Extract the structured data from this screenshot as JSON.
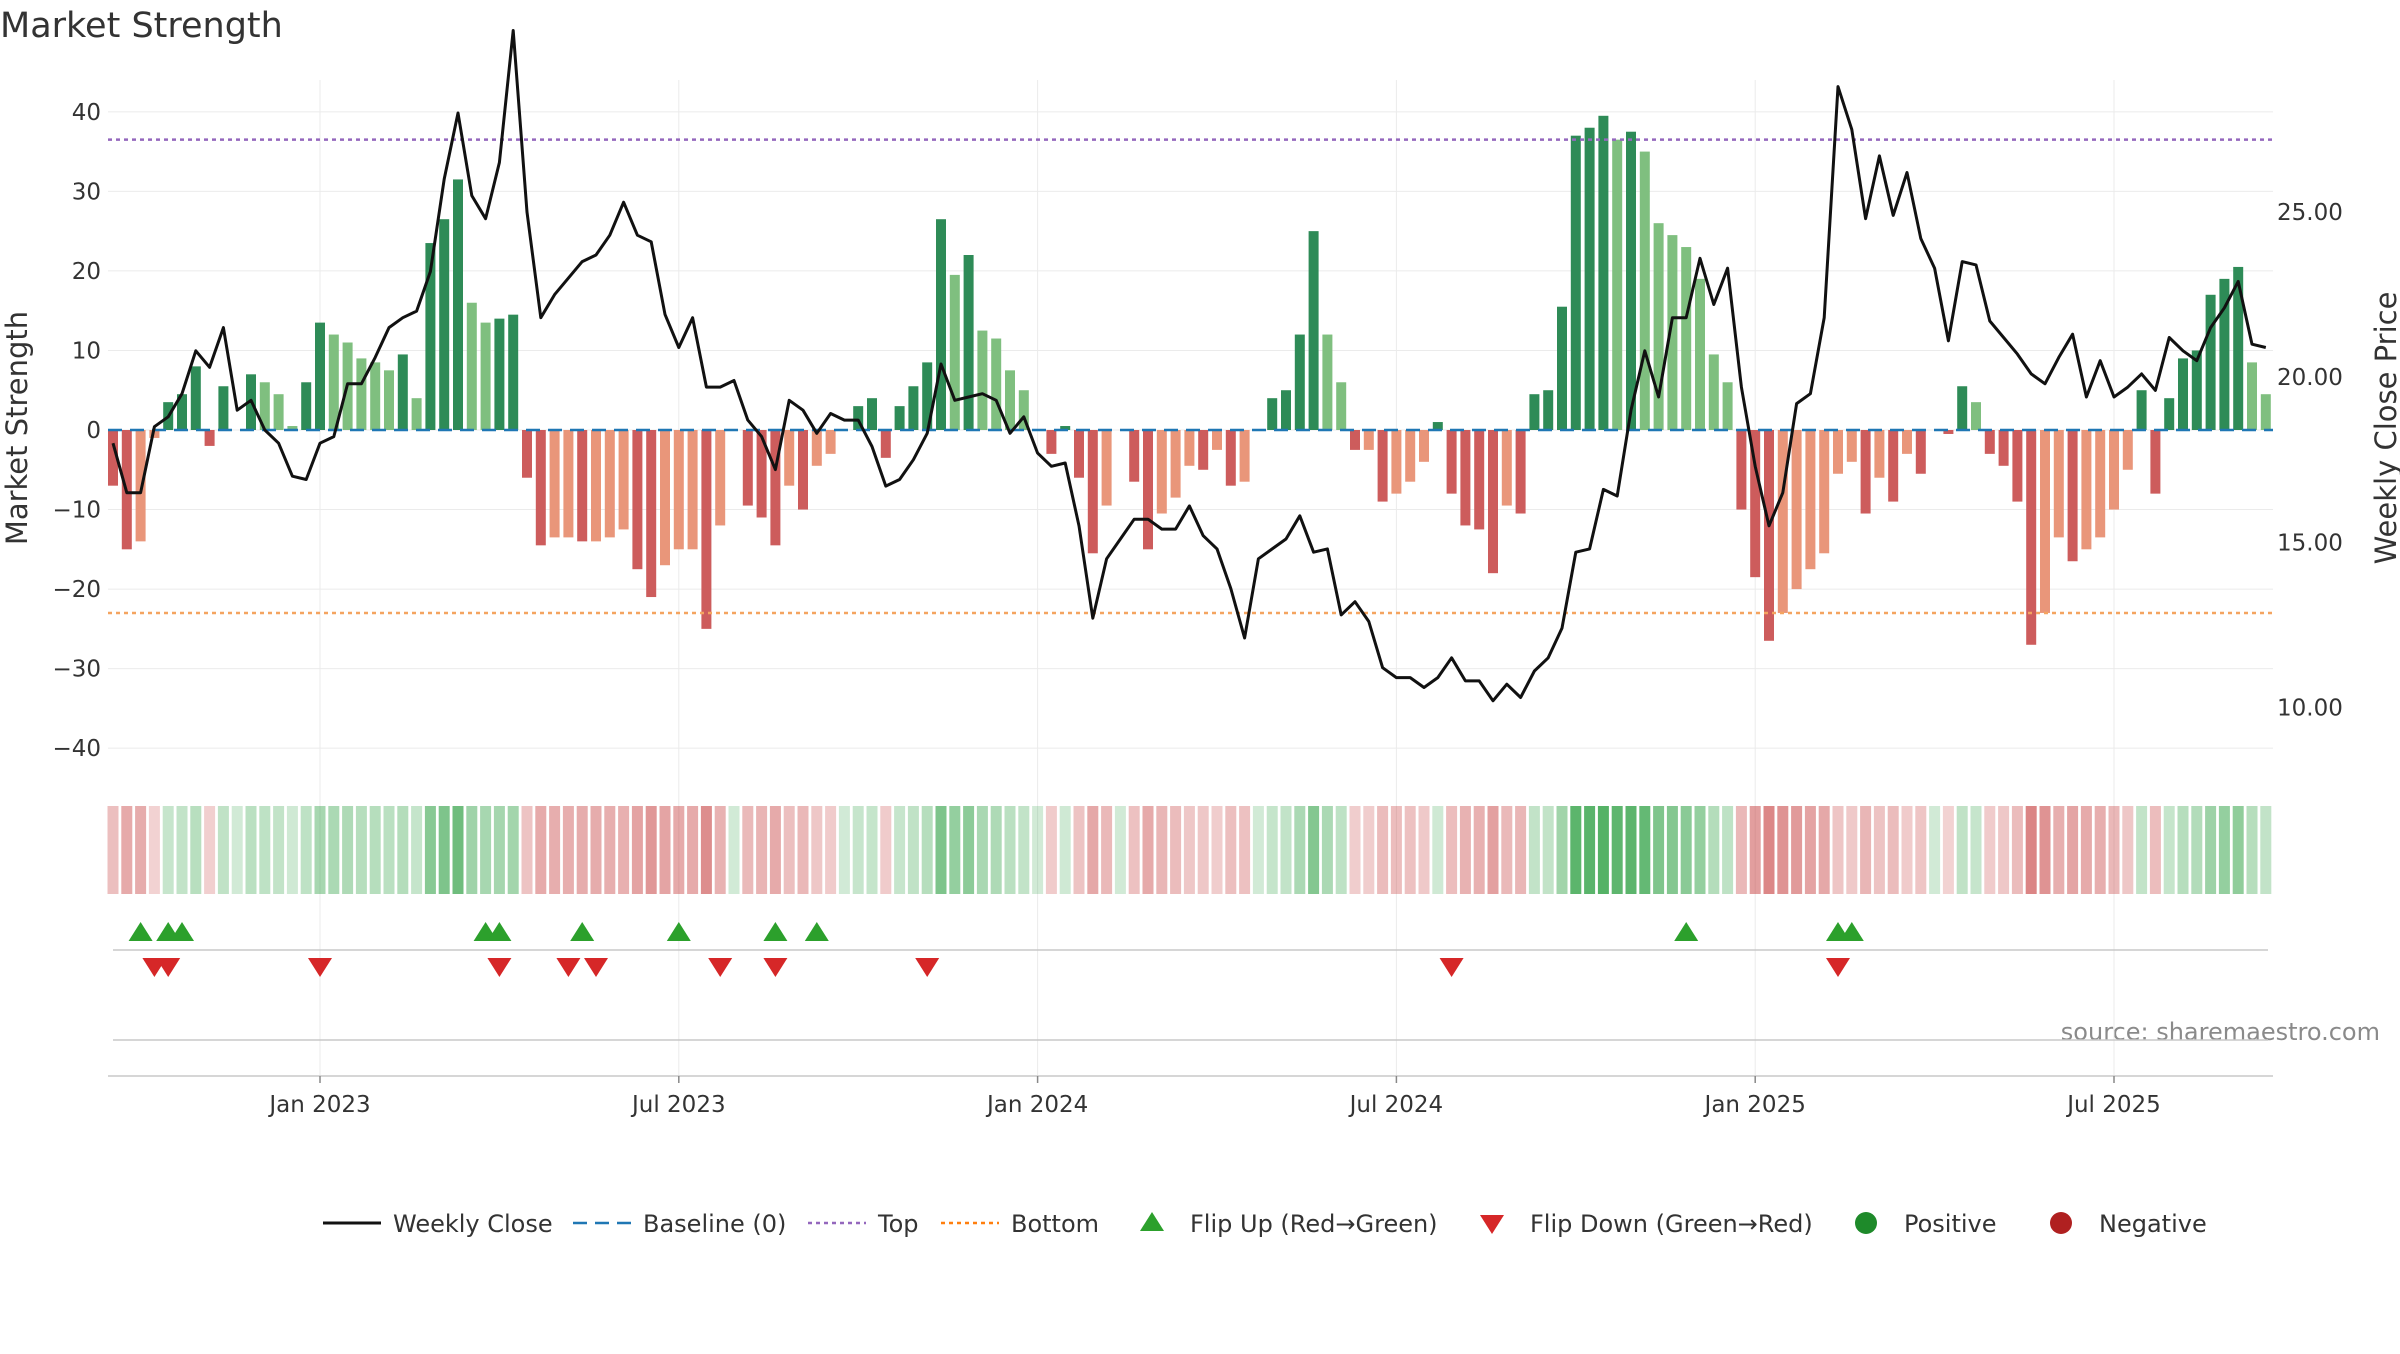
{
  "chart_data": {
    "type": "bar",
    "title": "Market Strength",
    "ylabel": "Market Strength",
    "y2label": "Weekly Close Price",
    "ylim": [
      -44,
      44
    ],
    "y2lim": [
      7.8,
      29.0
    ],
    "yticks": [
      40,
      30,
      20,
      10,
      0,
      -10,
      -20,
      -30,
      -40
    ],
    "ytick_labels": [
      "40",
      "30",
      "20",
      "10",
      "0",
      "−10",
      "−20",
      "−30",
      "−40"
    ],
    "y2ticks": [
      25,
      20,
      15,
      10
    ],
    "y2tick_labels": [
      "25.00",
      "20.00",
      "15.00",
      "10.00"
    ],
    "x_tick_labels": [
      "Jan 2023",
      "Jul 2023",
      "Jan 2024",
      "Jul 2024",
      "Jan 2025",
      "Jul 2025"
    ],
    "x_tick_week_index": [
      15,
      41,
      67,
      93,
      119,
      145
    ],
    "top_line": 36.5,
    "bottom_line": -23,
    "strength": [
      -7,
      -15,
      -14,
      -1,
      3.5,
      4.5,
      8,
      -2,
      5.5,
      0,
      7,
      6,
      4.5,
      0.5,
      6,
      13.5,
      12,
      11,
      9,
      8.5,
      7.5,
      9.5,
      4,
      23.5,
      26.5,
      31.5,
      16,
      13.5,
      14,
      14.5,
      -6,
      -14.5,
      -13.5,
      -13.5,
      -14,
      -14,
      -13.5,
      -12.5,
      -17.5,
      -21,
      -17,
      -15,
      -15,
      -25,
      -12,
      0,
      -9.5,
      -11,
      -14.5,
      -7,
      -10,
      -4.5,
      -3,
      0,
      3,
      4,
      -3.5,
      3,
      5.5,
      8.5,
      26.5,
      19.5,
      22,
      12.5,
      11.5,
      7.5,
      5,
      0,
      -3,
      0.5,
      -6,
      -15.5,
      -9.5,
      0,
      -6.5,
      -15,
      -10.5,
      -8.5,
      -4.5,
      -5,
      -2.5,
      -7,
      -6.5,
      0,
      4,
      5,
      12,
      25,
      12,
      6,
      -2.5,
      -2.5,
      -9,
      -8,
      -6.5,
      -4,
      1,
      -8,
      -12,
      -12.5,
      -18,
      -9.5,
      -10.5,
      4.5,
      5,
      15.5,
      37,
      38,
      39.5,
      36.5,
      37.5,
      35,
      26,
      24.5,
      23,
      19,
      9.5,
      6,
      -10,
      -18.5,
      -26.5,
      -23,
      -20,
      -17.5,
      -15.5,
      -5.5,
      -4,
      -10.5,
      -6,
      -9,
      -3,
      -5.5,
      0,
      -0.5,
      5.5,
      3.5,
      -3,
      -4.5,
      -9,
      -27,
      -23,
      -13.5,
      -16.5,
      -15,
      -13.5,
      -10,
      -5,
      5,
      -8,
      4,
      9,
      10,
      17,
      19,
      20.5,
      8.5,
      4.5
    ],
    "close": [
      18,
      16.5,
      16.5,
      18.5,
      18.8,
      19.5,
      20.8,
      20.3,
      21.5,
      19,
      19.3,
      18.4,
      18,
      17,
      16.9,
      18,
      18.2,
      19.8,
      19.8,
      20.6,
      21.5,
      21.8,
      22,
      23.2,
      26,
      28,
      25.5,
      24.8,
      26.5,
      30.5,
      25,
      21.8,
      22.5,
      23,
      23.5,
      23.7,
      24.3,
      25.3,
      24.3,
      24.1,
      21.9,
      20.9,
      21.8,
      19.7,
      19.7,
      19.9,
      18.7,
      18.2,
      17.2,
      19.3,
      19,
      18.3,
      18.9,
      18.7,
      18.7,
      17.9,
      16.7,
      16.9,
      17.5,
      18.3,
      20.4,
      19.3,
      19.4,
      19.5,
      19.3,
      18.3,
      18.8,
      17.7,
      17.3,
      17.4,
      15.5,
      12.7,
      14.5,
      15.1,
      15.7,
      15.7,
      15.4,
      15.4,
      16.1,
      15.2,
      14.8,
      13.6,
      12.1,
      14.5,
      14.8,
      15.1,
      15.8,
      14.7,
      14.8,
      12.8,
      13.2,
      12.6,
      11.2,
      10.9,
      10.9,
      10.6,
      10.9,
      11.5,
      10.8,
      10.8,
      10.2,
      10.7,
      10.3,
      11.1,
      11.5,
      12.4,
      14.7,
      14.8,
      16.6,
      16.4,
      19,
      20.8,
      19.4,
      21.8,
      21.8,
      23.6,
      22.2,
      23.3,
      19.7,
      17.3,
      15.5,
      16.5,
      19.2,
      19.5,
      21.8,
      28.8,
      27.5,
      24.8,
      26.7,
      24.9,
      26.2,
      24.2,
      23.3,
      21.1,
      23.5,
      23.4,
      21.7,
      21.2,
      20.7,
      20.1,
      19.8,
      20.6,
      21.3,
      19.4,
      20.5,
      19.4,
      19.7,
      20.1,
      19.6,
      21.2,
      20.8,
      20.5,
      21.5,
      22.1,
      22.9,
      21,
      20.9
    ],
    "flip_up_weeks": [
      2,
      4,
      5,
      27,
      28,
      34,
      41,
      48,
      51,
      114,
      125,
      126
    ],
    "flip_down_weeks": [
      3,
      4,
      15,
      28,
      33,
      35,
      44,
      48,
      59,
      97,
      125
    ],
    "series": [
      {
        "name": "Weekly Close",
        "style": "line",
        "color": "#111111"
      },
      {
        "name": "Baseline (0)",
        "style": "dashed",
        "color": "#1f77b4"
      },
      {
        "name": "Top",
        "style": "dotted",
        "color": "#9467bd"
      },
      {
        "name": "Bottom",
        "style": "dotted",
        "color": "#ff7f0e"
      },
      {
        "name": "Flip Up (Red→Green)",
        "style": "marker-up",
        "color": "#2ca02c"
      },
      {
        "name": "Flip Down (Green→Red)",
        "style": "marker-down",
        "color": "#d62728"
      },
      {
        "name": "Positive",
        "style": "marker-circle",
        "color": "#1e8a2a"
      },
      {
        "name": "Negative",
        "style": "marker-circle",
        "color": "#b02020"
      }
    ],
    "source_note": "source: sharemaestro.com"
  },
  "colors": {
    "pos_strong": "#2e8b57",
    "pos_light": "#7fbf7f",
    "neg_strong": "#cd5c5c",
    "neg_light": "#e9967a",
    "baseline": "#1f77b4",
    "top": "#9467bd",
    "bottom": "#f4a460",
    "close": "#111111"
  }
}
